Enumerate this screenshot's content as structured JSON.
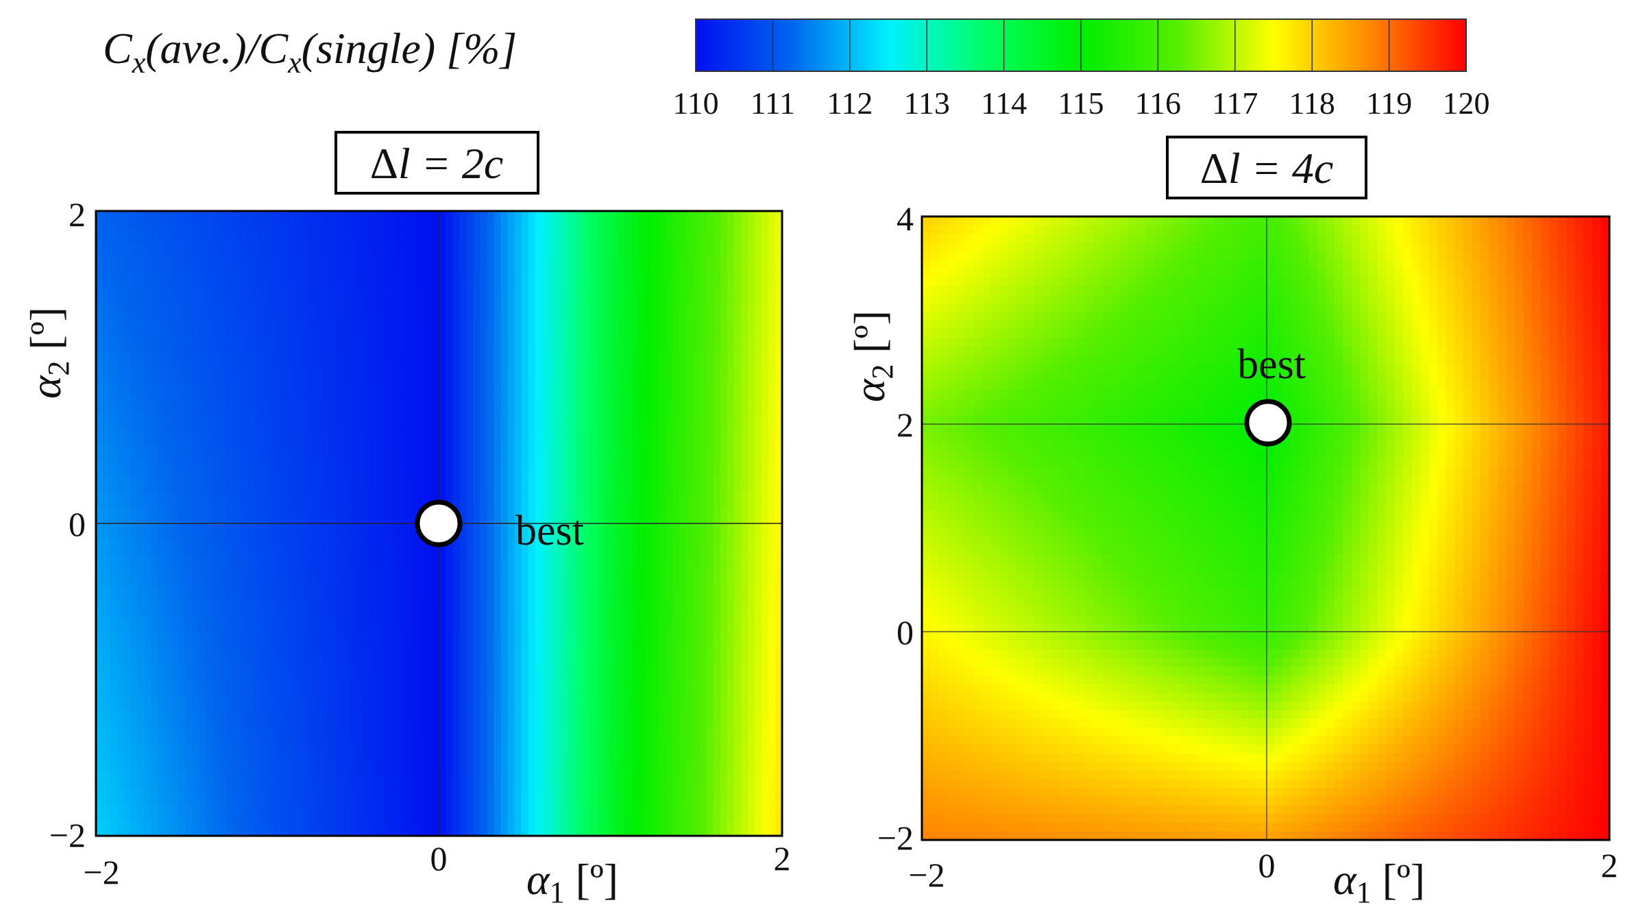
{
  "colorbar": {
    "label_main": "C",
    "label_sub": "x",
    "label_mid": "(ave.)/",
    "label_main2": "C",
    "label_sub2": "x",
    "label_tail": "(single) [%]",
    "ticks": [
      "110",
      "111",
      "112",
      "113",
      "114",
      "115",
      "116",
      "117",
      "118",
      "119",
      "120"
    ],
    "range": [
      110,
      120
    ],
    "colors": [
      "#0010f0",
      "#0066ee",
      "#00f0ff",
      "#00ff66",
      "#00ee00",
      "#55ee00",
      "#ffff00",
      "#ff8800",
      "#ff0000"
    ]
  },
  "chart_data": [
    {
      "type": "heatmap",
      "title": "Δl = 2c",
      "title_main": "Δ",
      "title_rest": "l = 2c",
      "xlabel": "α1 [º]",
      "ylabel": "α2 [º]",
      "xlim": [
        -2,
        2
      ],
      "ylim": [
        -2,
        2
      ],
      "xticks": [
        "−2",
        "0",
        "2"
      ],
      "yticks": [
        "2",
        "0",
        "−2"
      ],
      "x": [
        -2,
        -1,
        0,
        1,
        2
      ],
      "y": [
        -2,
        0,
        2
      ],
      "z": [
        [
          112.2,
          111.0,
          110.0,
          114.5,
          117.8
        ],
        [
          111.7,
          110.8,
          110.0,
          114.4,
          117.6
        ],
        [
          111.2,
          110.6,
          110.0,
          114.3,
          117.4
        ]
      ],
      "annotation": {
        "text": "best",
        "x": 0,
        "y": 0
      }
    },
    {
      "type": "heatmap",
      "title": "Δl = 4c",
      "title_main": "Δ",
      "title_rest": "l = 4c",
      "xlabel": "α1 [º]",
      "ylabel": "α2 [º]",
      "xlim": [
        -2,
        2
      ],
      "ylim": [
        -2,
        4
      ],
      "xticks": [
        "−2",
        "0",
        "2"
      ],
      "yticks": [
        "4",
        "2",
        "0",
        "−2"
      ],
      "x": [
        -2,
        0,
        2
      ],
      "y": [
        -2,
        0,
        2,
        4
      ],
      "z": [
        [
          118.8,
          118.5,
          120.0
        ],
        [
          117.6,
          115.8,
          120.0
        ],
        [
          116.5,
          115.0,
          119.8
        ],
        [
          118.0,
          116.0,
          120.0
        ]
      ],
      "annotation": {
        "text": "best",
        "x": 0,
        "y": 2
      }
    }
  ]
}
